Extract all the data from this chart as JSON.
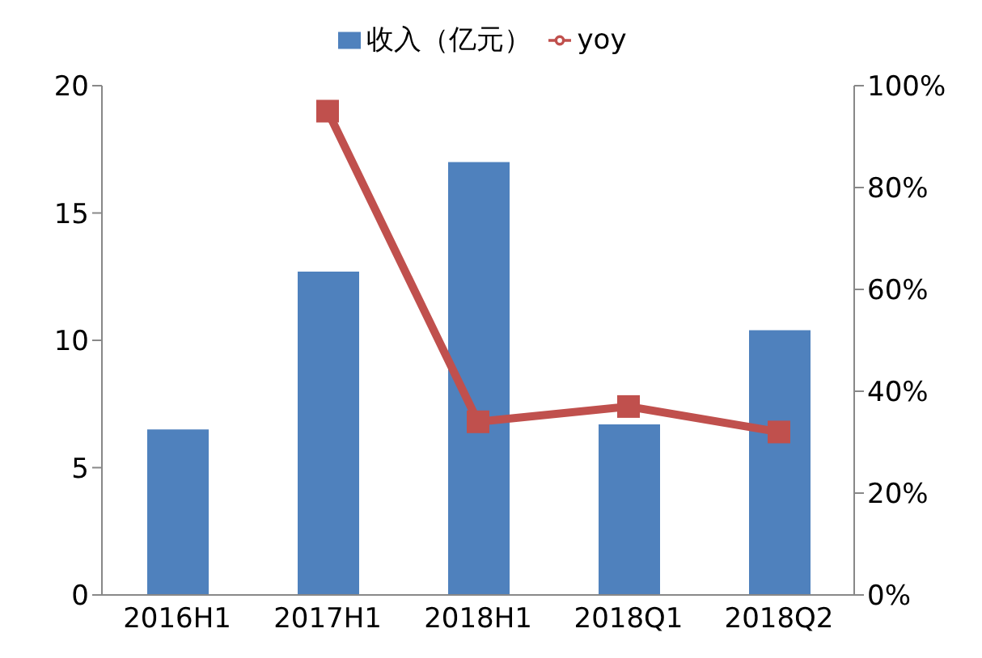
{
  "chart_data": {
    "type": "bar",
    "categories": [
      "2016H1",
      "2017H1",
      "2018H1",
      "2018Q1",
      "2018Q2"
    ],
    "series": [
      {
        "name": "收入（亿元）",
        "color": "#4f81bd",
        "values": [
          6.5,
          12.7,
          17.0,
          6.7,
          10.4
        ]
      },
      {
        "name": "yoy",
        "type": "line",
        "axis": "y2",
        "color": "#c0504d",
        "values": [
          null,
          95,
          34,
          37,
          32
        ]
      }
    ],
    "ylim": [
      0,
      20
    ],
    "yticks": [
      0,
      5,
      10,
      15,
      20
    ],
    "y2lim": [
      0,
      100
    ],
    "y2ticks": [
      {
        "value": 0,
        "label": "0%"
      },
      {
        "value": 20,
        "label": "20%"
      },
      {
        "value": 40,
        "label": "40%"
      },
      {
        "value": 60,
        "label": "60%"
      },
      {
        "value": 80,
        "label": "80%"
      },
      {
        "value": 100,
        "label": "100%"
      }
    ],
    "grid": false,
    "legend": "top",
    "marker": "square",
    "line_style": "solid"
  }
}
